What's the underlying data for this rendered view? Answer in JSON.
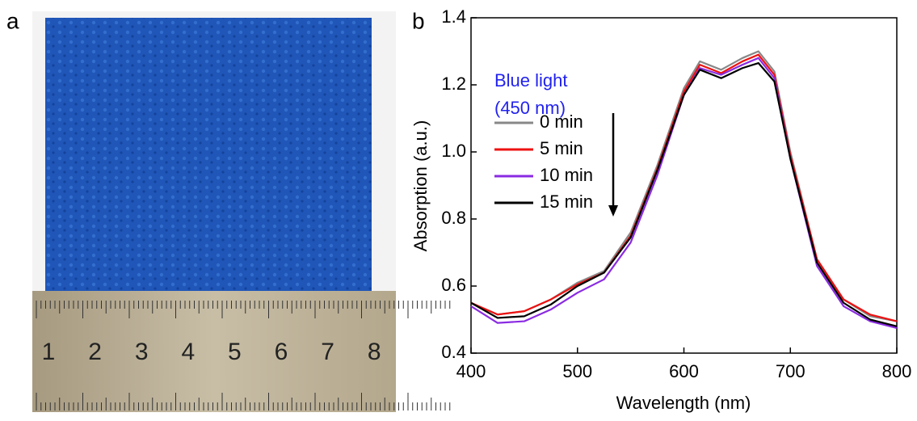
{
  "photo": {
    "label": "a",
    "ruler_labels": [
      "1",
      "2",
      "3",
      "4",
      "5",
      "6",
      "7",
      "8"
    ]
  },
  "chart_data": {
    "type": "line",
    "label": "b",
    "x_label": "Wavelength (nm)",
    "y_label": "Absorption (a.u.)",
    "annotations": [
      "Blue light",
      "(450 nm)"
    ],
    "annotation_color": "#2222ee",
    "x": [
      400,
      425,
      450,
      475,
      500,
      525,
      550,
      575,
      600,
      615,
      635,
      655,
      670,
      685,
      700,
      725,
      750,
      775,
      800
    ],
    "series": [
      {
        "name": "0 min",
        "color": "#888888",
        "values": [
          0.55,
          0.515,
          0.525,
          0.56,
          0.61,
          0.645,
          0.76,
          0.96,
          1.19,
          1.27,
          1.245,
          1.28,
          1.3,
          1.24,
          1.0,
          0.68,
          0.56,
          0.51,
          0.495
        ]
      },
      {
        "name": "5 min",
        "color": "#ee1111",
        "values": [
          0.55,
          0.515,
          0.525,
          0.56,
          0.605,
          0.64,
          0.75,
          0.95,
          1.18,
          1.26,
          1.235,
          1.27,
          1.29,
          1.23,
          0.99,
          0.68,
          0.56,
          0.515,
          0.495
        ]
      },
      {
        "name": "10 min",
        "color": "#8a2be2",
        "values": [
          0.54,
          0.49,
          0.495,
          0.53,
          0.58,
          0.62,
          0.73,
          0.93,
          1.17,
          1.25,
          1.23,
          1.26,
          1.28,
          1.22,
          0.98,
          0.66,
          0.54,
          0.495,
          0.475
        ]
      },
      {
        "name": "15 min",
        "color": "#000000",
        "values": [
          0.55,
          0.505,
          0.51,
          0.545,
          0.6,
          0.64,
          0.745,
          0.945,
          1.17,
          1.245,
          1.22,
          1.25,
          1.265,
          1.21,
          0.98,
          0.67,
          0.55,
          0.5,
          0.48
        ]
      }
    ],
    "xlim": [
      400,
      800
    ],
    "xticks": [
      400,
      500,
      600,
      700,
      800
    ],
    "ylim": [
      0.4,
      1.4
    ],
    "yticks": [
      0.4,
      0.6,
      0.8,
      {
        "value": 1.0,
        "label": "1.0"
      },
      1.2,
      1.4
    ],
    "grid": false,
    "legend": "upper left"
  }
}
